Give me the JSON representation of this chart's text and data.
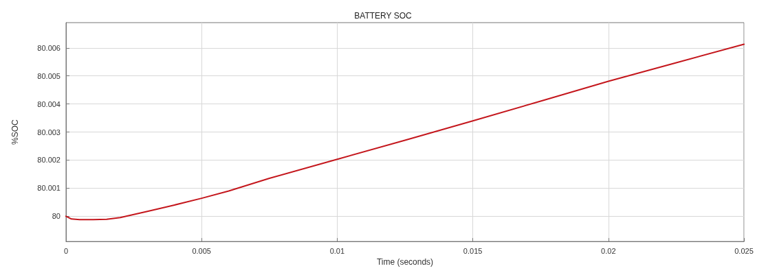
{
  "chart_data": {
    "type": "line",
    "title": "BATTERY SOC",
    "xlabel": "Time (seconds)",
    "ylabel": "%SOC",
    "xlim": [
      0,
      0.025
    ],
    "xticks": [
      0,
      0.005,
      0.01,
      0.015,
      0.02,
      0.025
    ],
    "ylim": [
      79.9991,
      80.0069
    ],
    "yticks": [
      80,
      80.001,
      80.002,
      80.003,
      80.004,
      80.005,
      80.006
    ],
    "grid": true,
    "marker": "none",
    "line_style": "solid",
    "series": [
      {
        "color": "#c4161c",
        "x": [
          0,
          0.0002,
          0.0005,
          0.001,
          0.0015,
          0.002,
          0.0025,
          0.003,
          0.004,
          0.005,
          0.006,
          0.0075,
          0.01,
          0.0125,
          0.015,
          0.0175,
          0.02,
          0.0225,
          0.025
        ],
        "values": [
          80.0,
          79.9999,
          79.99988,
          79.99988,
          79.99989,
          79.99995,
          80.00006,
          80.00017,
          80.0004,
          80.00064,
          80.0009,
          80.00135,
          80.00203,
          80.00271,
          80.0034,
          80.0041,
          80.00481,
          80.00547,
          80.00613
        ]
      }
    ]
  }
}
